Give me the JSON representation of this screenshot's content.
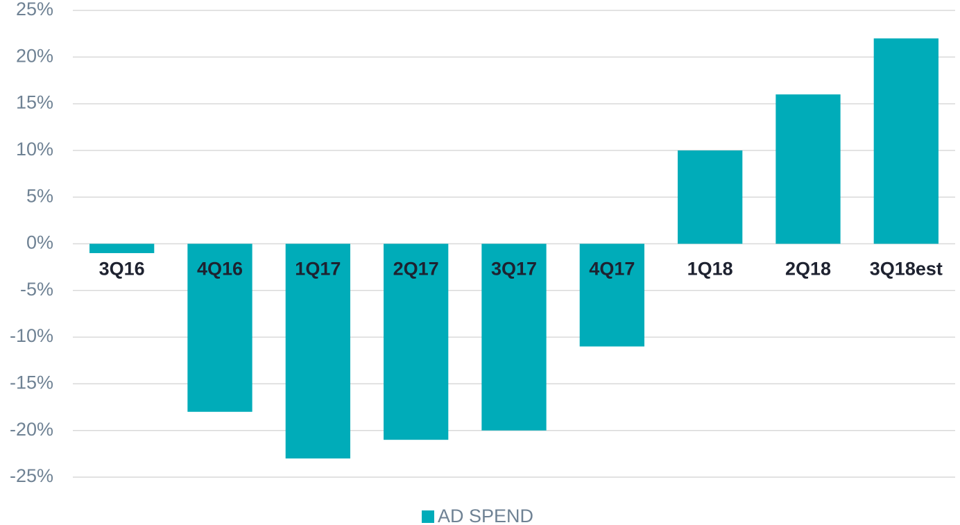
{
  "chart_data": {
    "type": "bar",
    "categories": [
      "3Q16",
      "4Q16",
      "1Q17",
      "2Q17",
      "3Q17",
      "4Q17",
      "1Q18",
      "2Q18",
      "3Q18est"
    ],
    "series": [
      {
        "name": "AD SPEND",
        "color": "#00acb9",
        "values": [
          -1,
          -18,
          -23,
          -21,
          -20,
          -11,
          10,
          16,
          22
        ]
      }
    ],
    "ylim": [
      -25,
      25
    ],
    "yticks": [
      {
        "value": 25,
        "label": "25%"
      },
      {
        "value": 20,
        "label": "20%"
      },
      {
        "value": 15,
        "label": "15%"
      },
      {
        "value": 10,
        "label": "10%"
      },
      {
        "value": 5,
        "label": "5%"
      },
      {
        "value": 0,
        "label": "0%"
      },
      {
        "value": -5,
        "label": "-5%"
      },
      {
        "value": -10,
        "label": "-10%"
      },
      {
        "value": -15,
        "label": "-15%"
      },
      {
        "value": -20,
        "label": "-20%"
      },
      {
        "value": -25,
        "label": "-25%"
      }
    ],
    "grid": true,
    "legend": "bottom"
  }
}
